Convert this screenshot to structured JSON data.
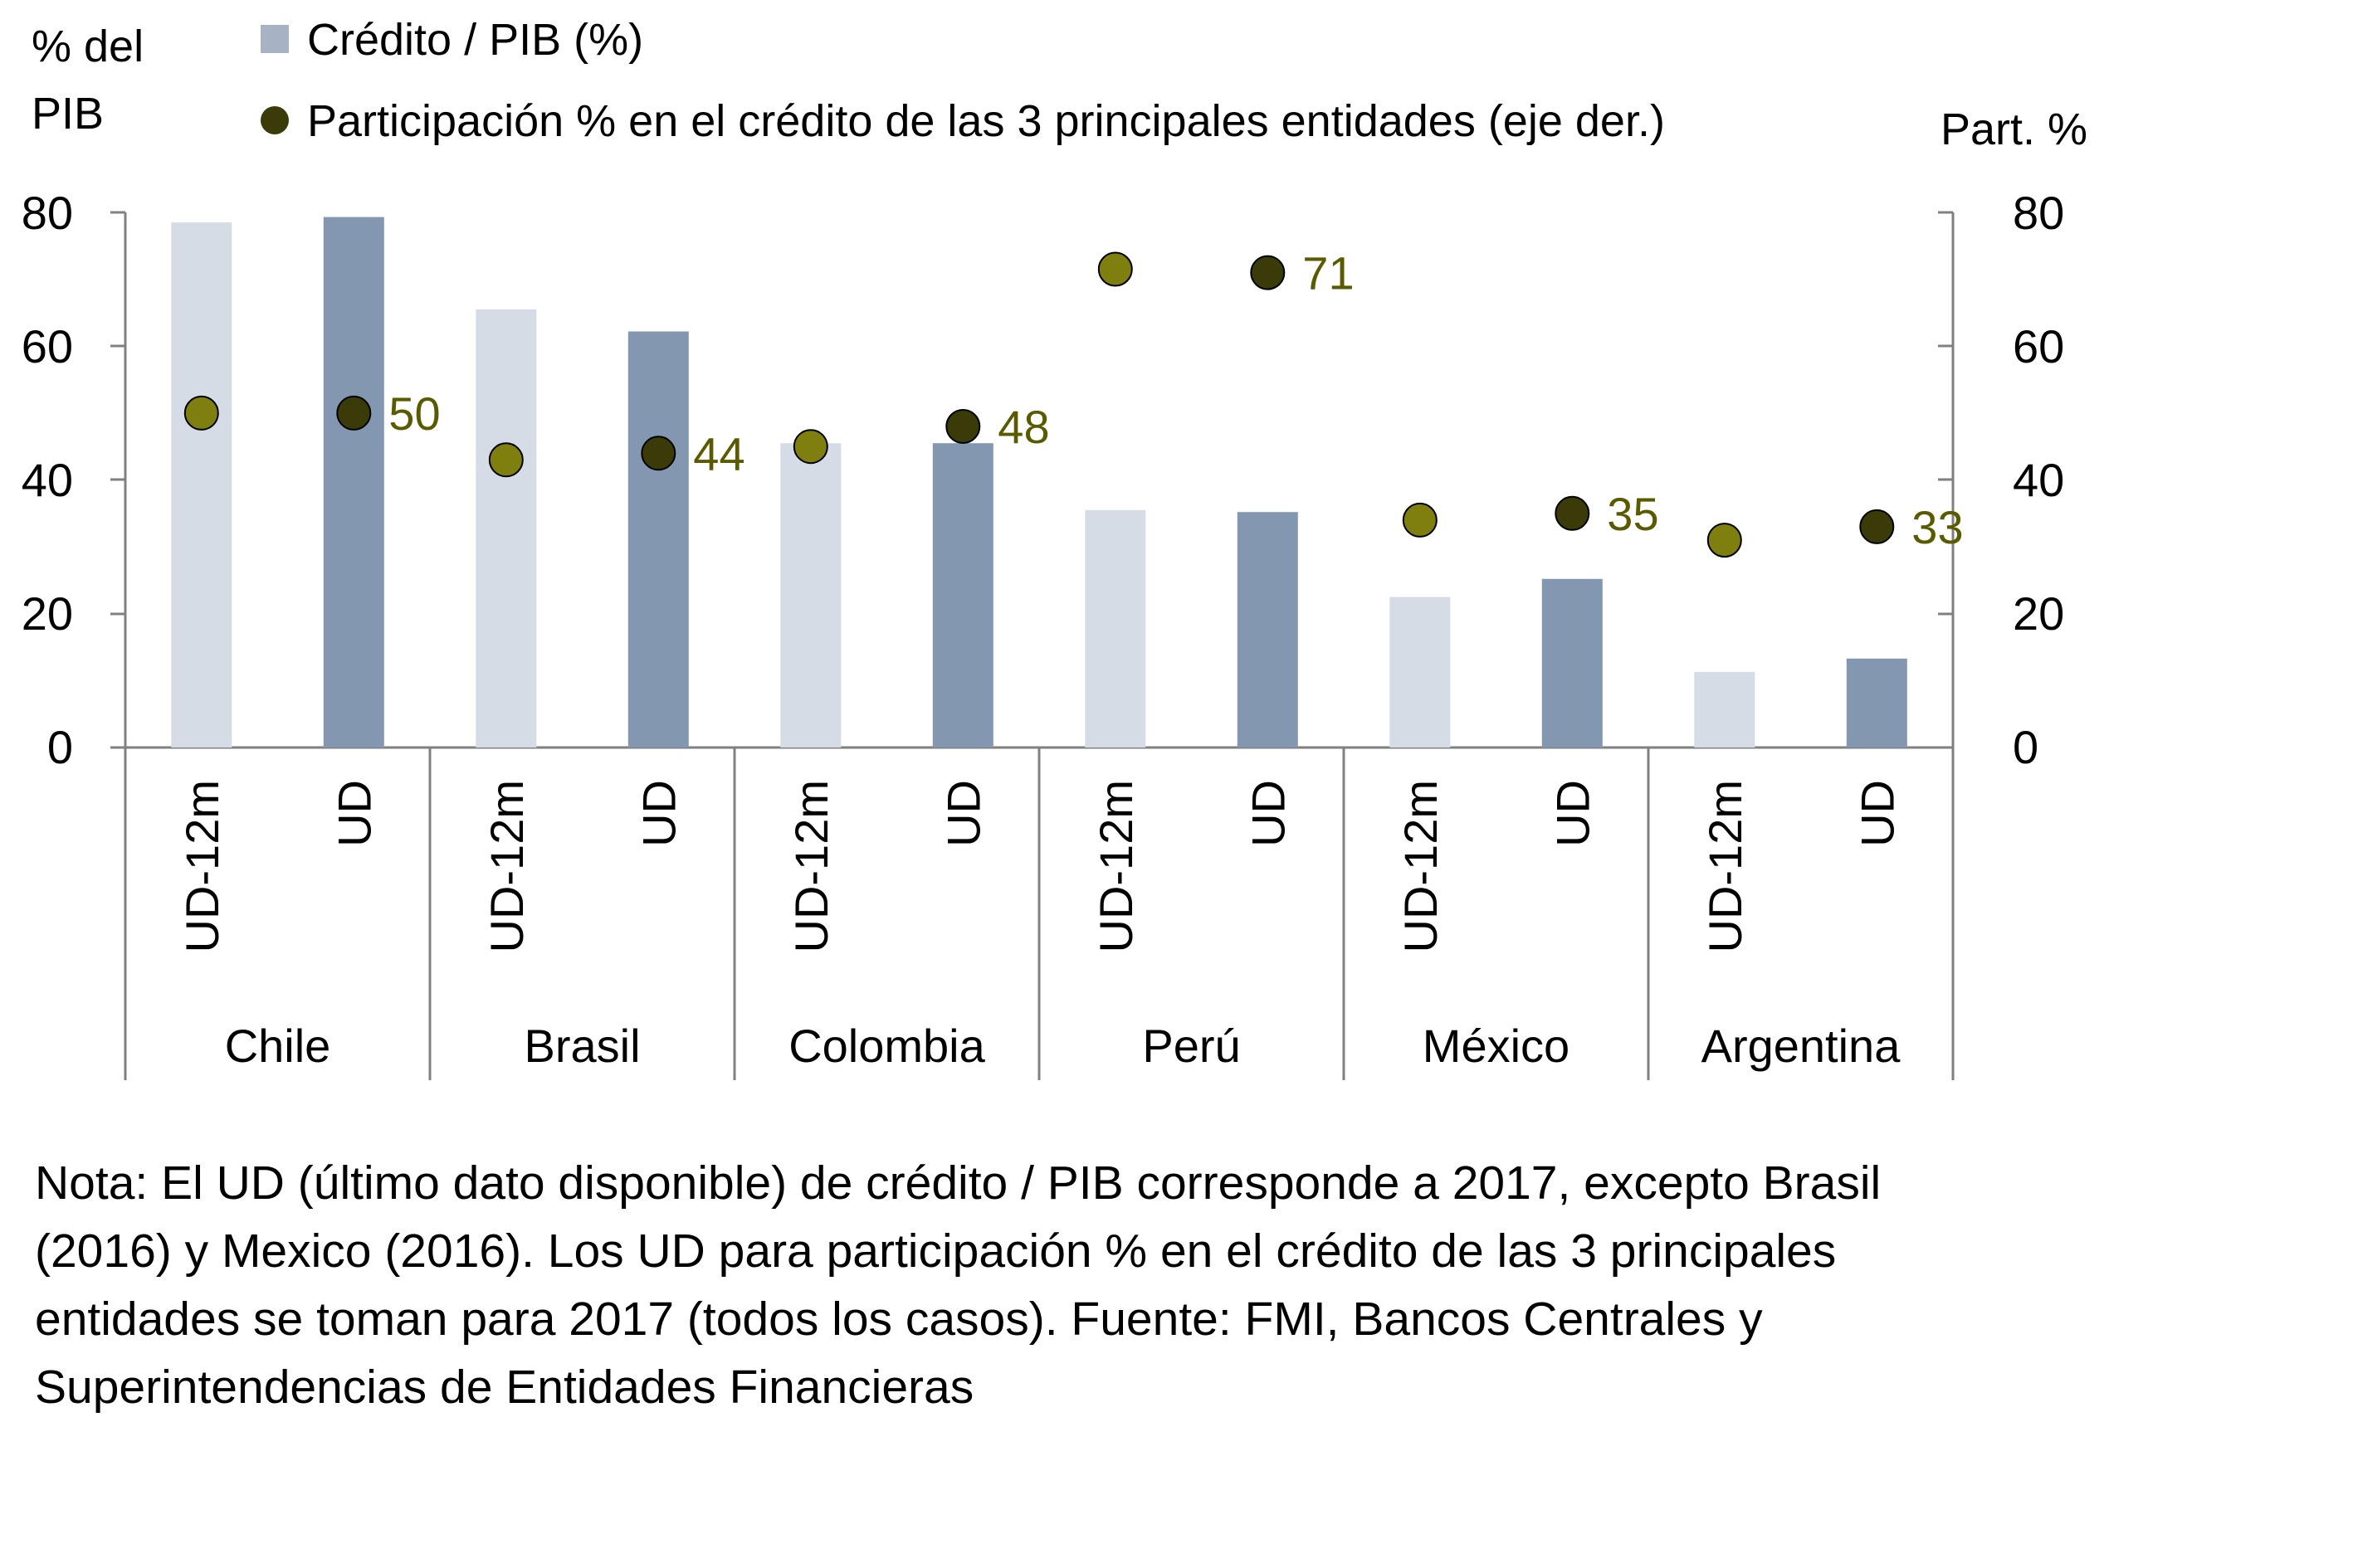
{
  "chart_data": {
    "type": "bar",
    "left_axis": {
      "title_line1": "% del",
      "title_line2": "PIB",
      "ylim": [
        0,
        80
      ],
      "ticks": [
        "0",
        "20",
        "40",
        "60",
        "80"
      ]
    },
    "right_axis": {
      "title": "Part. %",
      "ylim": [
        0,
        80
      ],
      "ticks": [
        "0",
        "20",
        "40",
        "60",
        "80"
      ]
    },
    "legend": {
      "position": "top",
      "items": [
        {
          "label": "Crédito / PIB (%)",
          "color": "#a7b2c4",
          "marker": "square"
        },
        {
          "label": "Participación % en el crédito de las 3 principales entidades (eje der.)",
          "color": "#3b3b0a",
          "marker": "circle"
        }
      ]
    },
    "groups": [
      "Chile",
      "Brasil",
      "Colombia",
      "Perú",
      "México",
      "Argentina"
    ],
    "periods": [
      "UD-12m",
      "UD"
    ],
    "colors": {
      "bar_ud12m": "#d6dce6",
      "bar_ud": "#8497b0",
      "dot_ud12m": "#7f7f0f",
      "dot_ud": "#3b3b0a",
      "label": "#5a5a00",
      "axis": "#808080"
    },
    "series": [
      {
        "name": "Crédito / PIB (%)",
        "axis": "left",
        "kind": "bar",
        "values": [
          78.5,
          79.3,
          65.5,
          62.2,
          45.5,
          45.5,
          35.5,
          35.2,
          22.5,
          25.2,
          11.3,
          13.3
        ]
      },
      {
        "name": "Participación % en el crédito de las 3 principales entidades (eje der.)",
        "axis": "right",
        "kind": "dot",
        "values": [
          50,
          50,
          43,
          44,
          45,
          48,
          71.5,
          71,
          34,
          35,
          31,
          33
        ],
        "data_labels": [
          "",
          "50",
          "",
          "44",
          "",
          "48",
          "",
          "71",
          "",
          "35",
          "",
          "33"
        ]
      }
    ]
  },
  "note": {
    "lines": [
      "Nota: El UD (último dato disponible) de crédito / PIB corresponde  a 2017, excepto Brasil",
      "(2016) y Mexico (2016). Los UD para participación % en el crédito de las 3 principales",
      "entidades se toman para 2017 (todos los casos). Fuente:  FMI, Bancos Centrales y",
      "Superintendencias  de Entidades Financieras"
    ]
  }
}
